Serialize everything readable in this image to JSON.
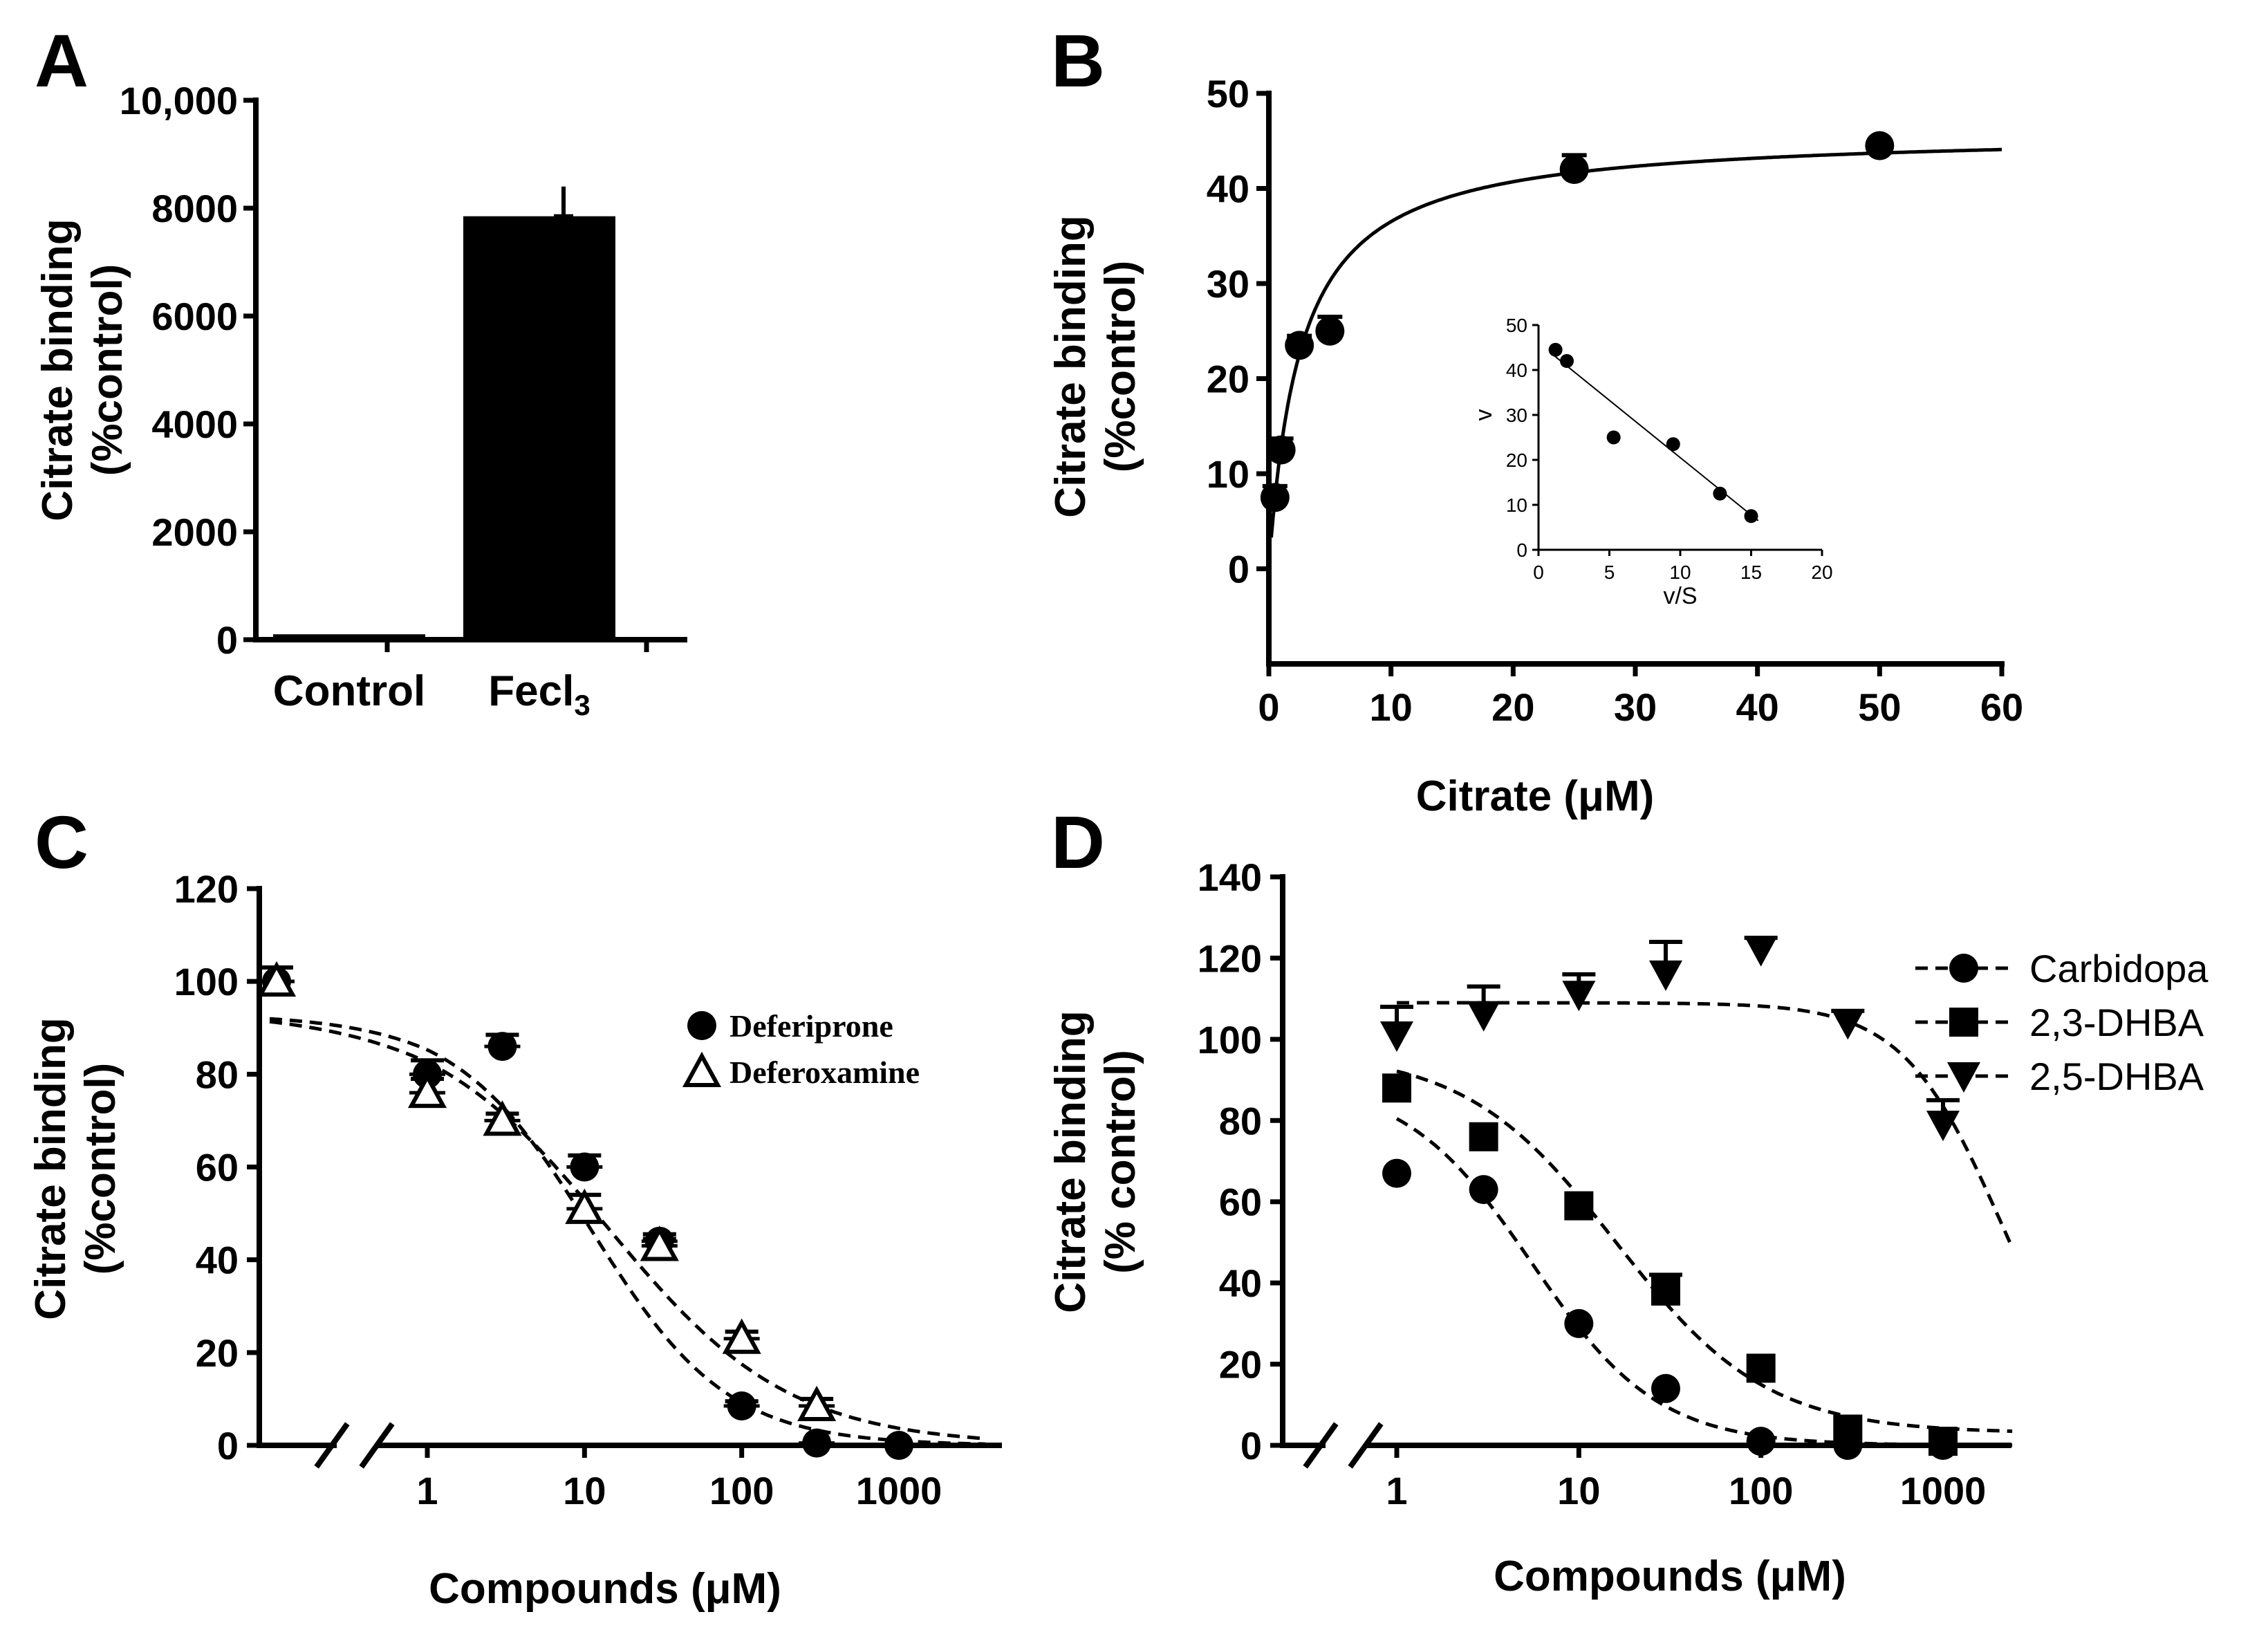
{
  "chart_data": [
    {
      "panel": "A",
      "type": "bar",
      "categories": [
        "Control",
        "Fecl3"
      ],
      "category_labels": [
        {
          "main": "Control",
          "sub": ""
        },
        {
          "main": "Fecl",
          "sub": "3"
        }
      ],
      "values": [
        100,
        7850
      ],
      "errors": [
        20,
        550
      ],
      "ylabel": [
        "Citrate binding",
        "(%control)"
      ],
      "ylim": [
        0,
        10000
      ],
      "yticks": [
        0,
        2000,
        4000,
        6000,
        8000,
        10000
      ],
      "ytick_labels": [
        "0",
        "2000",
        "4000",
        "6000",
        "8000",
        "10,000"
      ]
    },
    {
      "panel": "B",
      "type": "scatter",
      "x": [
        0.5,
        1,
        2.5,
        5,
        25,
        50
      ],
      "y": [
        7.5,
        12.5,
        23.5,
        25,
        42,
        44.5
      ],
      "yerr": [
        1.2,
        1.2,
        1,
        1.5,
        1.5,
        0.5
      ],
      "fit": {
        "model": "michaelis-menten",
        "vmax": 46,
        "km": 2.6
      },
      "xlabel": "Citrate (μM)",
      "ylabel": [
        "Citrate binding",
        "(%control)"
      ],
      "xlim": [
        0,
        60
      ],
      "ylim": [
        -10,
        50
      ],
      "xticks": [
        0,
        10,
        20,
        30,
        40,
        50,
        60
      ],
      "yticks": [
        0,
        10,
        20,
        30,
        40,
        50
      ],
      "inset": {
        "type": "scatter",
        "x": [
          1.2,
          2,
          5.3,
          9.5,
          12.8,
          15
        ],
        "y": [
          44.5,
          42,
          25,
          23.5,
          12.5,
          7.5
        ],
        "fit": {
          "slope": -2.55,
          "intercept": 46
        },
        "xlabel": "v/S",
        "ylabel": "v",
        "xlim": [
          0,
          20
        ],
        "ylim": [
          0,
          50
        ],
        "xticks": [
          0,
          5,
          10,
          15,
          20
        ],
        "yticks": [
          0,
          10,
          20,
          30,
          40,
          50
        ]
      }
    },
    {
      "panel": "C",
      "type": "scatter",
      "xscale": "log",
      "xlabel": "Compounds (μM)",
      "ylabel": [
        "Citrate binding",
        "(%control)"
      ],
      "ylim": [
        0,
        120
      ],
      "yticks": [
        0,
        20,
        40,
        60,
        80,
        100,
        120
      ],
      "xticks": [
        1,
        10,
        100,
        1000
      ],
      "xtick_labels": [
        "1",
        "10",
        "100",
        "1000"
      ],
      "axis_break": true,
      "series": [
        {
          "name": "Deferiprone",
          "marker": "filled-circle",
          "x": [
            0.12,
            1,
            3,
            10,
            30,
            100,
            300,
            1000
          ],
          "y": [
            100,
            80,
            86,
            60,
            44,
            8.5,
            0.5,
            0
          ],
          "yerr": [
            3,
            3,
            2.5,
            2.5,
            1.5,
            1,
            0.5,
            0.5
          ],
          "fit": {
            "top": 93,
            "bottom": 0,
            "ec50": 11,
            "hill": 1.0
          }
        },
        {
          "name": "Deferoxamine",
          "marker": "open-triangle",
          "x": [
            0.12,
            1,
            3,
            10,
            30,
            100,
            300
          ],
          "y": [
            100,
            76,
            70,
            51,
            43,
            23,
            8.5
          ],
          "yerr": [
            3,
            3,
            1.5,
            3,
            1.5,
            1.5,
            1.5
          ],
          "fit": {
            "top": 94,
            "bottom": 0,
            "ec50": 14,
            "hill": 0.75
          }
        }
      ]
    },
    {
      "panel": "D",
      "type": "scatter",
      "xscale": "log",
      "xlabel": "Compounds (μM)",
      "ylabel": [
        "Citrate binding",
        "(% control)"
      ],
      "ylim": [
        0,
        140
      ],
      "yticks": [
        0,
        20,
        40,
        60,
        80,
        100,
        120,
        140
      ],
      "xticks": [
        1,
        10,
        100,
        1000
      ],
      "xtick_labels": [
        "1",
        "10",
        "100",
        "1000"
      ],
      "axis_break": true,
      "series": [
        {
          "name": "Carbidopa",
          "marker": "filled-circle",
          "x": [
            1,
            3,
            10,
            30,
            100,
            300,
            1000
          ],
          "y": [
            67,
            63,
            30,
            14,
            1,
            0,
            0
          ],
          "yerr": [
            0,
            0,
            0,
            0,
            0,
            0,
            0
          ],
          "fit": {
            "top": 90,
            "bottom": 0,
            "ec50": 5.5,
            "hill": 1.25,
            "xmin": 1
          }
        },
        {
          "name": "2,3-DHBA",
          "marker": "filled-square",
          "x": [
            1,
            3,
            10,
            30,
            100,
            300,
            1000
          ],
          "y": [
            88,
            76,
            59,
            38,
            19,
            4,
            1
          ],
          "yerr": [
            0,
            0,
            0,
            4,
            0,
            0,
            0
          ],
          "fit": {
            "top": 97,
            "bottom": 3,
            "ec50": 16,
            "hill": 1.05,
            "xmin": 1
          }
        },
        {
          "name": "2,5-DHBA",
          "marker": "filled-triangle-down",
          "x": [
            1,
            3,
            10,
            30,
            100,
            300,
            1000
          ],
          "y": [
            101,
            106,
            111,
            116,
            122,
            104,
            79
          ],
          "yerr": [
            7,
            7,
            5,
            8,
            3,
            3,
            6
          ],
          "fit": {
            "top": 109,
            "bottom": 0,
            "ec50": 2100,
            "hill": 1.6,
            "xmin": 1
          }
        }
      ]
    }
  ]
}
